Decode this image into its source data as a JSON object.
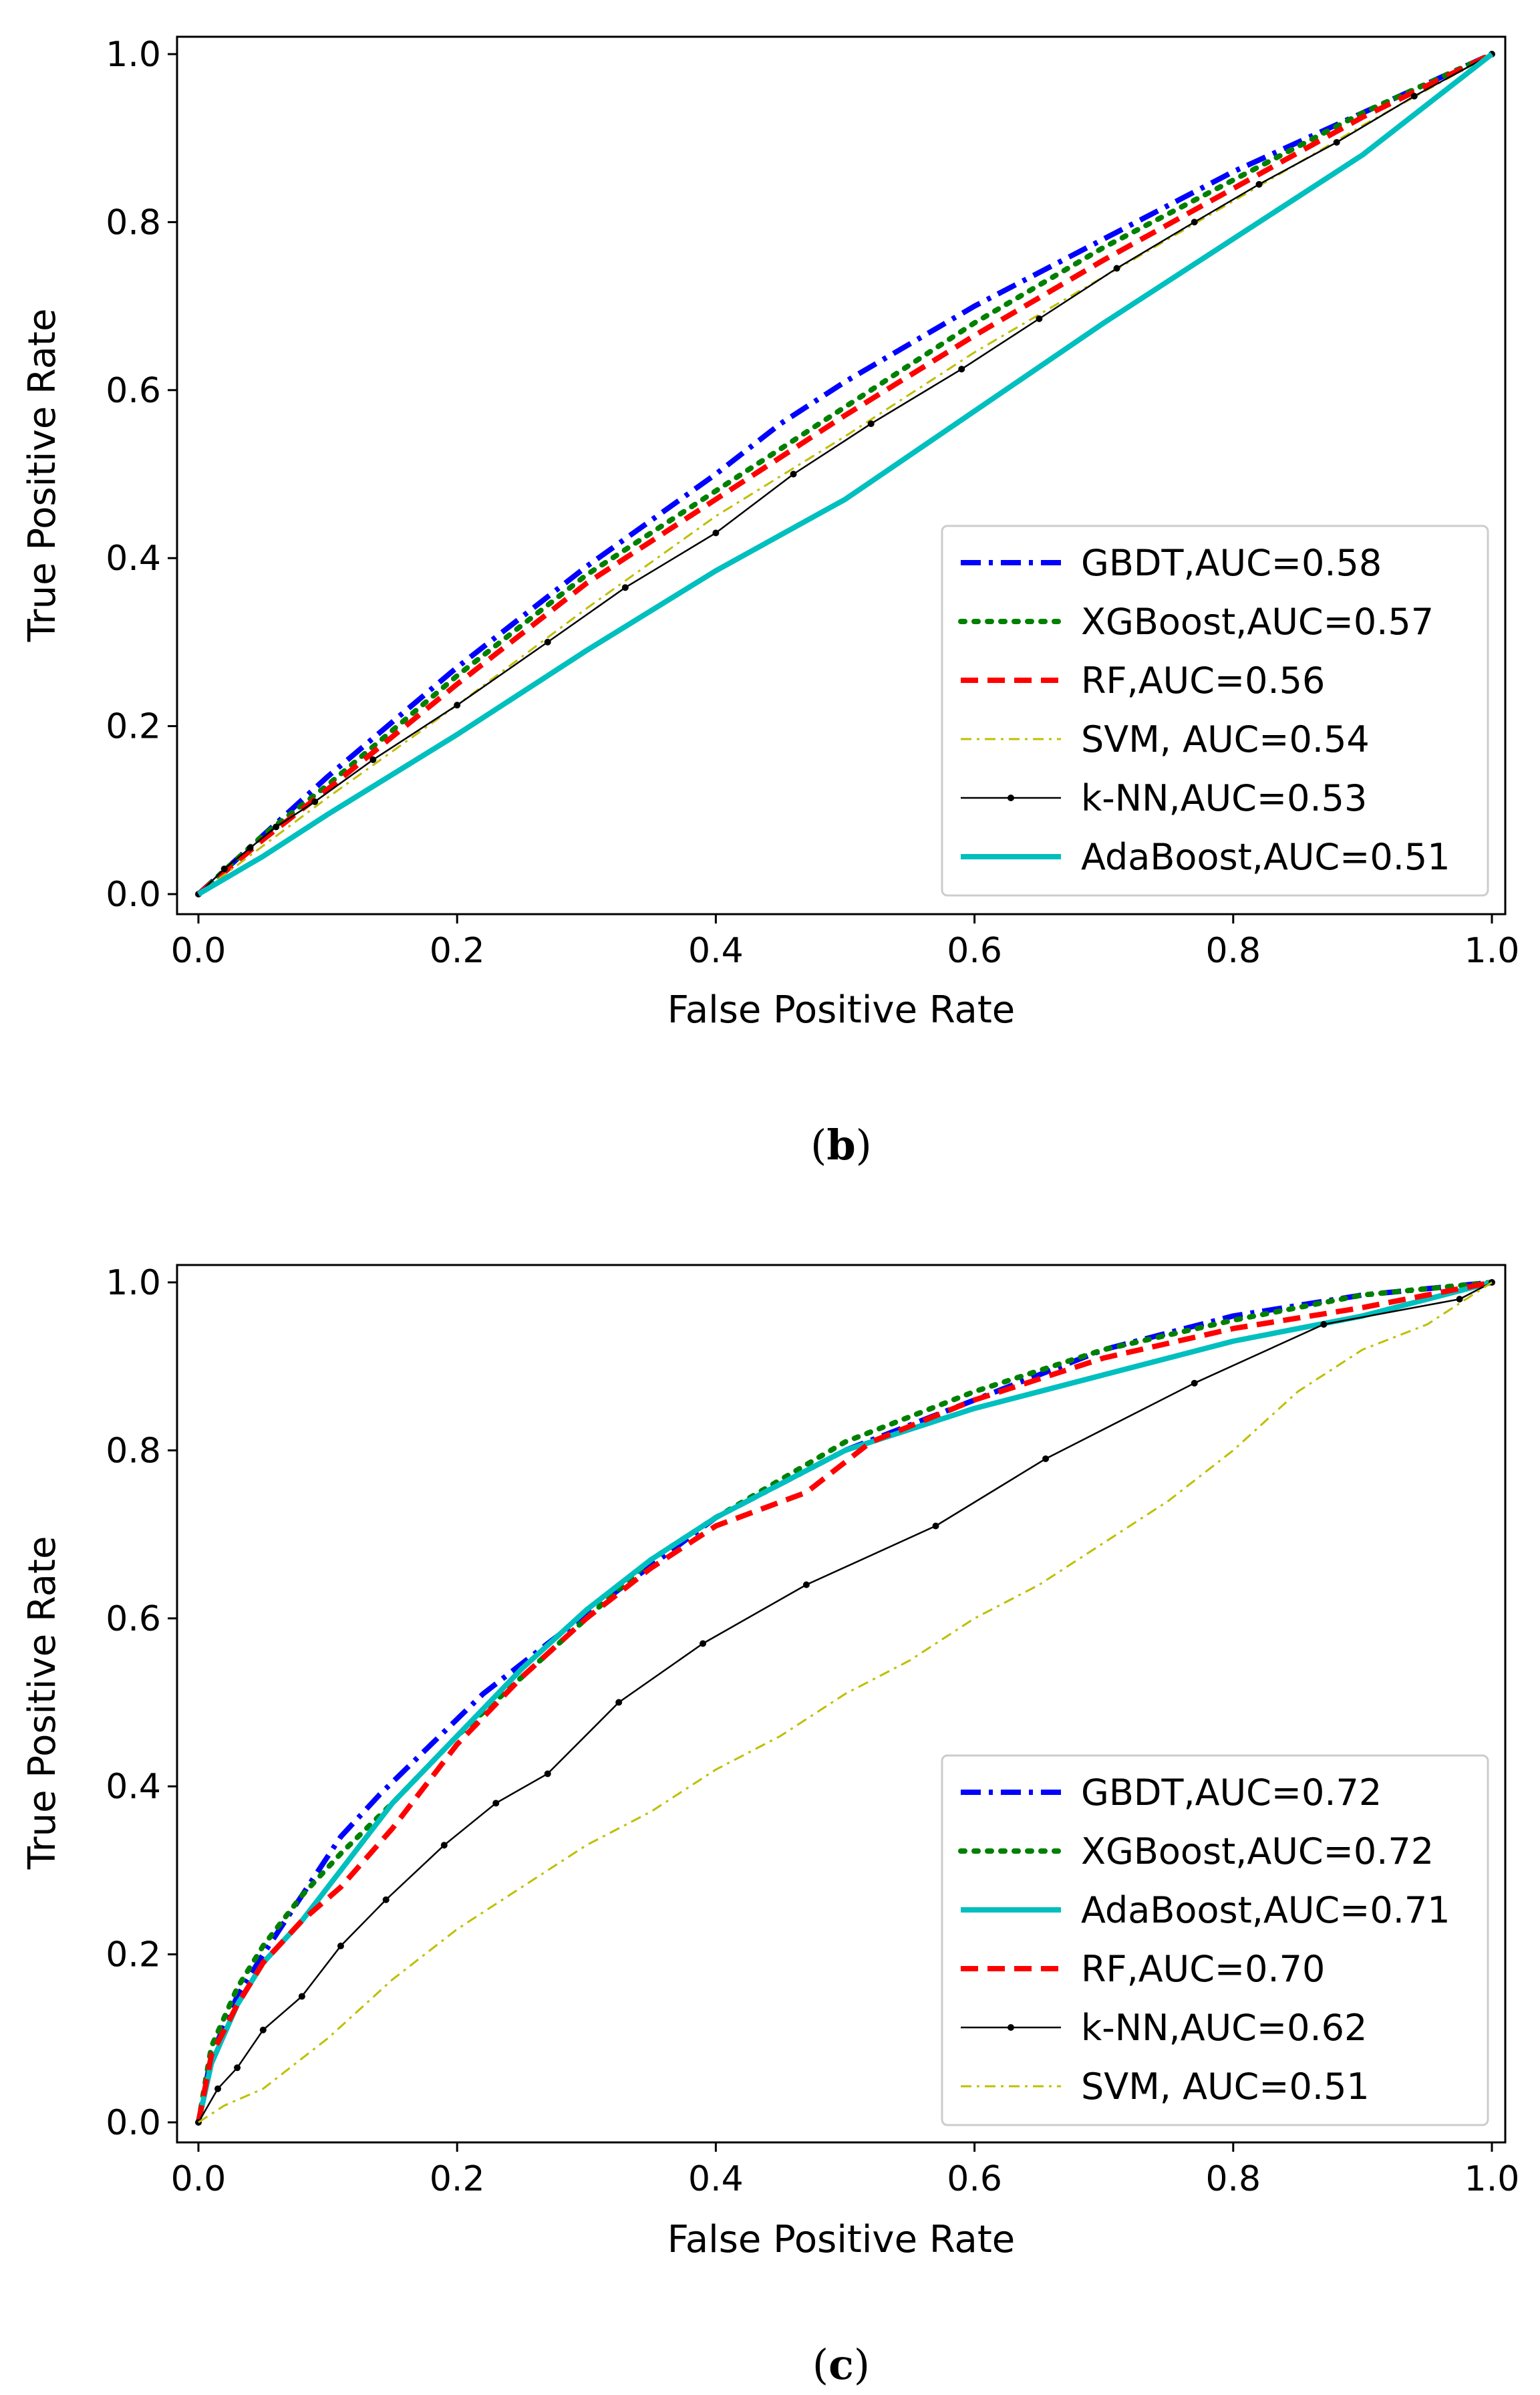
{
  "chart_data": [
    {
      "type": "line",
      "panel_label": "b",
      "caption_open": "(",
      "caption_close": ")",
      "xlabel": "False Positive Rate",
      "ylabel": "True Positive Rate",
      "xlim": [
        0.0,
        1.0
      ],
      "ylim": [
        0.0,
        1.0
      ],
      "xticks": [
        "0.0",
        "0.2",
        "0.4",
        "0.6",
        "0.8",
        "1.0"
      ],
      "yticks": [
        "0.0",
        "0.2",
        "0.4",
        "0.6",
        "0.8",
        "1.0"
      ],
      "grid": false,
      "legend_position": "lower-right",
      "series": [
        {
          "name": "GBDT,AUC=0.58",
          "color": "#0000ff",
          "style": "dashdot",
          "marker": false,
          "x": [
            0,
            0.05,
            0.1,
            0.2,
            0.3,
            0.4,
            0.45,
            0.5,
            0.6,
            0.7,
            0.8,
            0.9,
            1.0
          ],
          "y": [
            0,
            0.07,
            0.14,
            0.27,
            0.39,
            0.5,
            0.56,
            0.61,
            0.7,
            0.78,
            0.86,
            0.93,
            1.0
          ]
        },
        {
          "name": "XGBoost,AUC=0.57",
          "color": "#008000",
          "style": "dotted",
          "marker": false,
          "x": [
            0,
            0.05,
            0.1,
            0.2,
            0.3,
            0.4,
            0.5,
            0.6,
            0.7,
            0.8,
            0.9,
            1.0
          ],
          "y": [
            0,
            0.07,
            0.13,
            0.26,
            0.38,
            0.48,
            0.58,
            0.68,
            0.77,
            0.85,
            0.93,
            1.0
          ]
        },
        {
          "name": "RF,AUC=0.56",
          "color": "#ff0000",
          "style": "dashed",
          "marker": false,
          "x": [
            0,
            0.05,
            0.1,
            0.2,
            0.3,
            0.4,
            0.5,
            0.6,
            0.7,
            0.8,
            0.9,
            1.0
          ],
          "y": [
            0,
            0.065,
            0.125,
            0.25,
            0.37,
            0.47,
            0.57,
            0.665,
            0.755,
            0.84,
            0.925,
            1.0
          ]
        },
        {
          "name": "SVM, AUC=0.54",
          "color": "#bfbf00",
          "style": "dashdot-thin",
          "marker": false,
          "x": [
            0,
            0.1,
            0.2,
            0.3,
            0.4,
            0.5,
            0.6,
            0.7,
            0.8,
            0.9,
            1.0
          ],
          "y": [
            0,
            0.115,
            0.225,
            0.34,
            0.45,
            0.545,
            0.645,
            0.735,
            0.825,
            0.915,
            1.0
          ]
        },
        {
          "name": "k-NN,AUC=0.53",
          "color": "#000000",
          "style": "solid-thin",
          "marker": true,
          "x": [
            0,
            0.02,
            0.04,
            0.06,
            0.09,
            0.135,
            0.2,
            0.27,
            0.33,
            0.4,
            0.46,
            0.52,
            0.59,
            0.65,
            0.71,
            0.77,
            0.82,
            0.88,
            0.94,
            1.0
          ],
          "y": [
            0,
            0.03,
            0.055,
            0.08,
            0.11,
            0.16,
            0.225,
            0.3,
            0.365,
            0.43,
            0.5,
            0.56,
            0.625,
            0.685,
            0.745,
            0.8,
            0.845,
            0.895,
            0.95,
            1.0
          ]
        },
        {
          "name": "AdaBoost,AUC=0.51",
          "color": "#00bfbf",
          "style": "solid",
          "marker": false,
          "x": [
            0,
            0.05,
            0.1,
            0.2,
            0.3,
            0.4,
            0.5,
            0.6,
            0.7,
            0.8,
            0.9,
            1.0
          ],
          "y": [
            0,
            0.045,
            0.095,
            0.19,
            0.29,
            0.385,
            0.47,
            0.575,
            0.68,
            0.78,
            0.88,
            1.0
          ]
        }
      ]
    },
    {
      "type": "line",
      "panel_label": "c",
      "caption_open": "(",
      "caption_close": ")",
      "xlabel": "False Positive Rate",
      "ylabel": "True Positive Rate",
      "xlim": [
        0.0,
        1.0
      ],
      "ylim": [
        0.0,
        1.0
      ],
      "xticks": [
        "0.0",
        "0.2",
        "0.4",
        "0.6",
        "0.8",
        "1.0"
      ],
      "yticks": [
        "0.0",
        "0.2",
        "0.4",
        "0.6",
        "0.8",
        "1.0"
      ],
      "grid": false,
      "legend_position": "lower-right",
      "series": [
        {
          "name": "GBDT,AUC=0.72",
          "color": "#0000ff",
          "style": "dashdot",
          "marker": false,
          "x": [
            0,
            0.01,
            0.03,
            0.05,
            0.08,
            0.11,
            0.14,
            0.18,
            0.22,
            0.27,
            0.33,
            0.4,
            0.5,
            0.6,
            0.7,
            0.8,
            0.9,
            1.0
          ],
          "y": [
            0,
            0.08,
            0.15,
            0.2,
            0.27,
            0.34,
            0.39,
            0.45,
            0.51,
            0.57,
            0.64,
            0.72,
            0.8,
            0.86,
            0.92,
            0.96,
            0.985,
            1.0
          ]
        },
        {
          "name": "XGBoost,AUC=0.72",
          "color": "#008000",
          "style": "dotted",
          "marker": false,
          "x": [
            0,
            0.01,
            0.03,
            0.05,
            0.08,
            0.11,
            0.15,
            0.2,
            0.25,
            0.3,
            0.35,
            0.4,
            0.5,
            0.6,
            0.7,
            0.8,
            0.9,
            1.0
          ],
          "y": [
            0,
            0.09,
            0.16,
            0.21,
            0.27,
            0.32,
            0.38,
            0.46,
            0.53,
            0.6,
            0.67,
            0.72,
            0.81,
            0.87,
            0.92,
            0.955,
            0.985,
            1.0
          ]
        },
        {
          "name": "AdaBoost,AUC=0.71",
          "color": "#00bfbf",
          "style": "solid",
          "marker": false,
          "x": [
            0,
            0.01,
            0.03,
            0.05,
            0.08,
            0.11,
            0.15,
            0.2,
            0.25,
            0.3,
            0.35,
            0.4,
            0.5,
            0.6,
            0.7,
            0.8,
            0.9,
            1.0
          ],
          "y": [
            0,
            0.07,
            0.14,
            0.19,
            0.24,
            0.3,
            0.38,
            0.46,
            0.54,
            0.61,
            0.67,
            0.72,
            0.8,
            0.85,
            0.89,
            0.93,
            0.96,
            1.0
          ]
        },
        {
          "name": "RF,AUC=0.70",
          "color": "#ff0000",
          "style": "dashed",
          "marker": false,
          "x": [
            0,
            0.01,
            0.03,
            0.05,
            0.08,
            0.11,
            0.15,
            0.2,
            0.25,
            0.3,
            0.35,
            0.4,
            0.47,
            0.52,
            0.6,
            0.7,
            0.8,
            0.9,
            1.0
          ],
          "y": [
            0,
            0.08,
            0.14,
            0.19,
            0.24,
            0.28,
            0.35,
            0.45,
            0.53,
            0.6,
            0.66,
            0.71,
            0.75,
            0.81,
            0.86,
            0.91,
            0.945,
            0.97,
            1.0
          ]
        },
        {
          "name": "k-NN,AUC=0.62",
          "color": "#000000",
          "style": "solid-thin",
          "marker": true,
          "x": [
            0,
            0.015,
            0.03,
            0.05,
            0.08,
            0.11,
            0.145,
            0.19,
            0.23,
            0.27,
            0.325,
            0.39,
            0.47,
            0.57,
            0.655,
            0.77,
            0.87,
            0.975,
            1.0
          ],
          "y": [
            0,
            0.04,
            0.065,
            0.11,
            0.15,
            0.21,
            0.265,
            0.33,
            0.38,
            0.415,
            0.5,
            0.57,
            0.64,
            0.71,
            0.79,
            0.88,
            0.95,
            0.98,
            1.0
          ]
        },
        {
          "name": "SVM, AUC=0.51",
          "color": "#bfbf00",
          "style": "dashdot-thin",
          "marker": false,
          "x": [
            0,
            0.02,
            0.05,
            0.1,
            0.15,
            0.2,
            0.25,
            0.3,
            0.35,
            0.4,
            0.45,
            0.5,
            0.55,
            0.6,
            0.65,
            0.7,
            0.75,
            0.8,
            0.85,
            0.9,
            0.95,
            1.0
          ],
          "y": [
            0,
            0.02,
            0.04,
            0.1,
            0.17,
            0.23,
            0.28,
            0.33,
            0.37,
            0.42,
            0.46,
            0.51,
            0.55,
            0.6,
            0.64,
            0.69,
            0.74,
            0.8,
            0.87,
            0.92,
            0.95,
            1.0
          ]
        }
      ]
    }
  ]
}
